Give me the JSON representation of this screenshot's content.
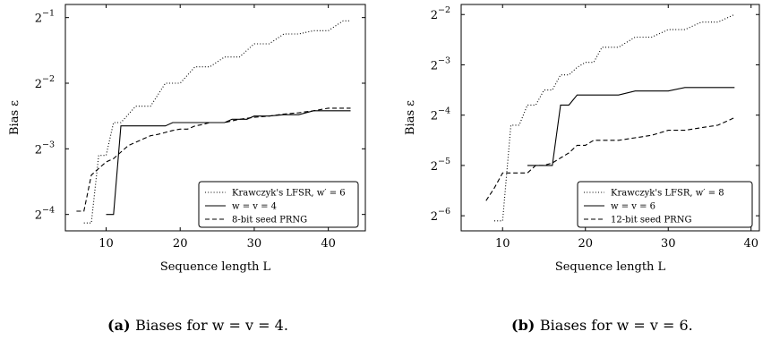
{
  "chart_data": [
    {
      "type": "line",
      "caption_tag": "(a)",
      "caption": "Biases for w = v = 4.",
      "xlabel": "Sequence length L",
      "ylabel": "Bias ε",
      "yscale": "log2",
      "xlim": [
        4.5,
        45
      ],
      "ylim_exp": [
        -4.25,
        -0.8
      ],
      "xticks": [
        "10",
        "20",
        "30",
        "40"
      ],
      "xtick_values": [
        10,
        20,
        30,
        40
      ],
      "ytick_exps": [
        -4,
        -3,
        -2,
        -1
      ],
      "ytick_base": "2",
      "legend_position": "bottom-right",
      "series": [
        {
          "name": "Krawczyk's LFSR, w′ = 6",
          "style": "dotted",
          "x": [
            7,
            8,
            9,
            10,
            11,
            12,
            14,
            16,
            18,
            20,
            22,
            24,
            26,
            28,
            30,
            32,
            34,
            36,
            38,
            40,
            42,
            43
          ],
          "y": [
            -4.13,
            -4.13,
            -3.1,
            -3.1,
            -2.6,
            -2.6,
            -2.35,
            -2.35,
            -2.0,
            -2.0,
            -1.75,
            -1.75,
            -1.6,
            -1.6,
            -1.4,
            -1.4,
            -1.25,
            -1.25,
            -1.2,
            -1.2,
            -1.05,
            -1.05
          ]
        },
        {
          "name": "w = v = 4",
          "style": "solid",
          "x": [
            10,
            11,
            12,
            14,
            16,
            18,
            19,
            20,
            22,
            24,
            26,
            27,
            29,
            30,
            32,
            34,
            36,
            38,
            40,
            43
          ],
          "y": [
            -4.0,
            -4.0,
            -2.65,
            -2.65,
            -2.65,
            -2.65,
            -2.6,
            -2.6,
            -2.6,
            -2.6,
            -2.6,
            -2.55,
            -2.55,
            -2.5,
            -2.5,
            -2.48,
            -2.48,
            -2.42,
            -2.42,
            -2.42
          ]
        },
        {
          "name": "8-bit seed PRNG",
          "style": "dashed",
          "x": [
            6,
            7,
            8,
            9,
            10,
            11,
            12,
            13,
            14,
            15,
            16,
            17,
            18,
            19,
            20,
            21,
            22,
            23,
            24,
            26,
            28,
            30,
            32,
            34,
            36,
            38,
            40,
            43
          ],
          "y": [
            -3.95,
            -3.95,
            -3.4,
            -3.3,
            -3.2,
            -3.15,
            -3.05,
            -2.95,
            -2.9,
            -2.85,
            -2.8,
            -2.78,
            -2.75,
            -2.72,
            -2.7,
            -2.7,
            -2.65,
            -2.63,
            -2.6,
            -2.6,
            -2.55,
            -2.52,
            -2.5,
            -2.47,
            -2.45,
            -2.42,
            -2.38,
            -2.38
          ]
        }
      ]
    },
    {
      "type": "line",
      "caption_tag": "(b)",
      "caption": "Biases for w = v = 6.",
      "xlabel": "Sequence length L",
      "ylabel": "Bias ε",
      "yscale": "log2",
      "xlim": [
        5,
        41
      ],
      "ylim_exp": [
        -6.3,
        -1.8
      ],
      "xticks": [
        "10",
        "20",
        "30",
        "40"
      ],
      "xtick_values": [
        10,
        20,
        30,
        40
      ],
      "ytick_exps": [
        -6,
        -5,
        -4,
        -3,
        -2
      ],
      "ytick_base": "2",
      "legend_position": "bottom-right",
      "series": [
        {
          "name": "Krawczyk's LFSR, w′ = 8",
          "style": "dotted",
          "x": [
            9,
            10,
            11,
            12,
            13,
            14,
            15,
            16,
            17,
            18,
            19,
            20,
            21,
            22,
            24,
            26,
            28,
            30,
            32,
            34,
            36,
            38
          ],
          "y": [
            -6.1,
            -6.1,
            -4.2,
            -4.2,
            -3.8,
            -3.8,
            -3.5,
            -3.5,
            -3.2,
            -3.2,
            -3.05,
            -2.95,
            -2.95,
            -2.65,
            -2.65,
            -2.45,
            -2.45,
            -2.3,
            -2.3,
            -2.15,
            -2.15,
            -2.0
          ]
        },
        {
          "name": "w = v = 6",
          "style": "solid",
          "x": [
            13,
            14,
            15,
            16,
            17,
            18,
            19,
            20,
            22,
            24,
            26,
            28,
            30,
            32,
            34,
            36,
            38
          ],
          "y": [
            -5.0,
            -5.0,
            -5.0,
            -5.0,
            -3.8,
            -3.8,
            -3.6,
            -3.6,
            -3.6,
            -3.6,
            -3.52,
            -3.52,
            -3.52,
            -3.45,
            -3.45,
            -3.45,
            -3.45
          ]
        },
        {
          "name": "12-bit seed PRNG",
          "style": "dashed",
          "x": [
            8,
            9,
            10,
            11,
            12,
            13,
            14,
            15,
            16,
            17,
            18,
            19,
            20,
            21,
            22,
            24,
            26,
            28,
            30,
            32,
            34,
            36,
            38
          ],
          "y": [
            -5.7,
            -5.45,
            -5.15,
            -5.15,
            -5.15,
            -5.15,
            -5.0,
            -5.0,
            -4.95,
            -4.85,
            -4.75,
            -4.6,
            -4.6,
            -4.5,
            -4.5,
            -4.5,
            -4.45,
            -4.4,
            -4.3,
            -4.3,
            -4.25,
            -4.2,
            -4.05
          ]
        }
      ]
    }
  ]
}
